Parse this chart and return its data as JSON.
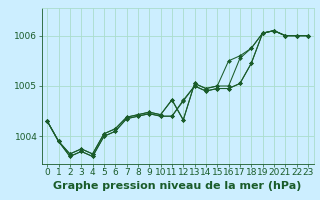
{
  "xlabel": "Graphe pression niveau de la mer (hPa)",
  "ylabel": "",
  "bg_color": "#cceeff",
  "grid_color": "#aaddcc",
  "line_color": "#1a5c2a",
  "marker_color": "#1a5c2a",
  "xlim": [
    -0.5,
    23.5
  ],
  "ylim": [
    1003.45,
    1006.55
  ],
  "yticks": [
    1004,
    1005,
    1006
  ],
  "xticks": [
    0,
    1,
    2,
    3,
    4,
    5,
    6,
    7,
    8,
    9,
    10,
    11,
    12,
    13,
    14,
    15,
    16,
    17,
    18,
    19,
    20,
    21,
    22,
    23
  ],
  "series": [
    [
      1004.3,
      1003.9,
      1003.6,
      1003.7,
      1003.6,
      1004.0,
      1004.1,
      1004.35,
      1004.4,
      1004.45,
      1004.4,
      1004.4,
      1004.72,
      1005.0,
      1004.9,
      1004.95,
      1004.95,
      1005.05,
      1005.45,
      1006.05,
      1006.1,
      1006.0,
      1006.0,
      1006.0
    ],
    [
      1004.3,
      1003.9,
      1003.6,
      1003.7,
      1003.6,
      1004.0,
      1004.1,
      1004.35,
      1004.4,
      1004.45,
      1004.4,
      1004.4,
      1004.7,
      1005.0,
      1004.9,
      1004.95,
      1004.95,
      1005.05,
      1005.45,
      1006.05,
      1006.1,
      1006.0,
      1006.0,
      1006.0
    ],
    [
      1004.3,
      1003.9,
      1003.65,
      1003.75,
      1003.65,
      1004.05,
      1004.15,
      1004.38,
      1004.43,
      1004.48,
      1004.43,
      1004.72,
      1004.32,
      1005.05,
      1004.95,
      1005.0,
      1005.0,
      1005.55,
      1005.75,
      1006.05,
      1006.1,
      1006.0,
      1006.0,
      1006.0
    ],
    [
      1004.3,
      1003.9,
      1003.65,
      1003.75,
      1003.65,
      1004.05,
      1004.15,
      1004.38,
      1004.43,
      1004.48,
      1004.43,
      1004.73,
      1004.33,
      1005.05,
      1004.95,
      1005.0,
      1005.5,
      1005.6,
      1005.75,
      1006.05,
      1006.1,
      1006.0,
      1006.0,
      1006.0
    ]
  ],
  "xlabel_fontsize": 8,
  "xlabel_fontweight": "bold",
  "tick_fontsize": 6.5,
  "tick_color": "#1a5c2a",
  "xlabel_color": "#1a5c2a"
}
